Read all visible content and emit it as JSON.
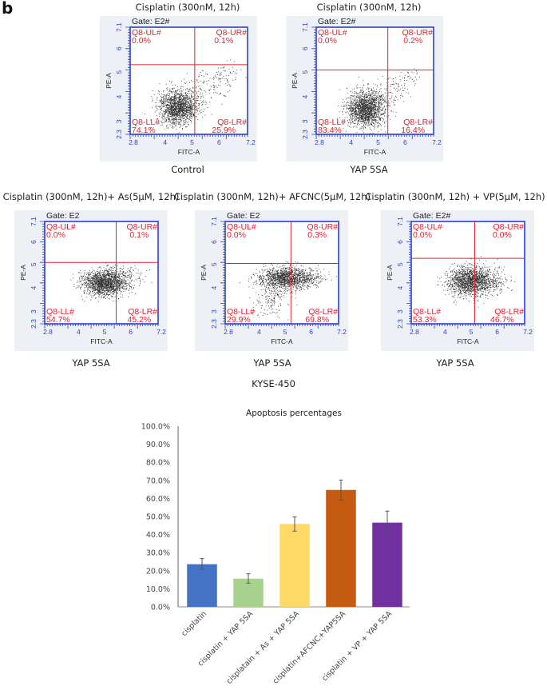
{
  "figure_label": "b",
  "cell_line": "KYSE-450",
  "flow_panels": [
    {
      "title": "Cisplatin (300nM, 12h)",
      "caption": "Control",
      "gate": "Gate: E2#",
      "x_axis_label": "FITC-A",
      "y_axis_label": "PE-A",
      "x_ticks": [
        "2.8",
        "4",
        "5",
        "6",
        "7.2"
      ],
      "y_ticks": [
        "2.3",
        "3",
        "4",
        "5",
        "6",
        "7.1"
      ],
      "quadrants": {
        "UL": {
          "name": "Q8-UL#",
          "value": "0.0%"
        },
        "UR": {
          "name": "Q8-UR#",
          "value": "0.1%"
        },
        "LL": {
          "name": "Q8-LL#",
          "value": "74.1%"
        },
        "LR": {
          "name": "Q8-LR#",
          "value": "25.9%"
        }
      }
    },
    {
      "title": "Cisplatin (300nM, 12h)",
      "caption": "YAP 5SA",
      "gate": "Gate: E2#",
      "x_axis_label": "FITC-A",
      "y_axis_label": "PE-A",
      "x_ticks": [
        "2.8",
        "4",
        "5",
        "6",
        "7.2"
      ],
      "y_ticks": [
        "2.3",
        "3",
        "4",
        "5",
        "6",
        "7.1"
      ],
      "quadrants": {
        "UL": {
          "name": "Q8-UL#",
          "value": "0.0%"
        },
        "UR": {
          "name": "Q8-UR#",
          "value": "0.2%"
        },
        "LL": {
          "name": "Q8-LL#",
          "value": "83.4%"
        },
        "LR": {
          "name": "Q8-LR#",
          "value": "16.4%"
        }
      }
    },
    {
      "title": "Cisplatin (300nM, 12h)+ As(5μM, 12h)",
      "caption": "YAP 5SA",
      "gate": "Gate: E2",
      "x_axis_label": "FITC-A",
      "y_axis_label": "PE-A",
      "x_ticks": [
        "2.8",
        "4",
        "5",
        "6",
        "7.2"
      ],
      "y_ticks": [
        "2.3",
        "3",
        "4",
        "5",
        "6",
        "7.1"
      ],
      "quadrants": {
        "UL": {
          "name": "Q8-UL#",
          "value": "0.0%"
        },
        "UR": {
          "name": "Q8-UR#",
          "value": "0.1%"
        },
        "LL": {
          "name": "Q8-LL#",
          "value": "54.7%"
        },
        "LR": {
          "name": "Q8-LR#",
          "value": "45.2%"
        }
      }
    },
    {
      "title": "Cisplatin (300nM, 12h)+ AFCNC(5μM, 12h)",
      "caption": "YAP 5SA",
      "gate": "Gate: E2",
      "x_axis_label": "FITC-A",
      "y_axis_label": "PE-A",
      "x_ticks": [
        "2.8",
        "4",
        "5",
        "6",
        "7.2"
      ],
      "y_ticks": [
        "2.3",
        "3",
        "4",
        "5",
        "6",
        "7.1"
      ],
      "quadrants": {
        "UL": {
          "name": "Q8-UL#",
          "value": "0.0%"
        },
        "UR": {
          "name": "Q8-UR#",
          "value": "0.3%"
        },
        "LL": {
          "name": "Q8-LL#",
          "value": "29.9%"
        },
        "LR": {
          "name": "Q8-LR#",
          "value": "69.8%"
        }
      }
    },
    {
      "title": "Cisplatin (300nM, 12h) + VP(5μM, 12h)",
      "caption": "YAP 5SA",
      "gate": "Gate: E2#",
      "x_axis_label": "FITC-A",
      "y_axis_label": "PE-A",
      "x_ticks": [
        "2.8",
        "4",
        "5",
        "6",
        "7.2"
      ],
      "y_ticks": [
        "2.3",
        "3",
        "4",
        "5",
        "6",
        "7.1"
      ],
      "quadrants": {
        "UL": {
          "name": "Q8-UL#",
          "value": "0.0%"
        },
        "UR": {
          "name": "Q8-UR#",
          "value": "0.0%"
        },
        "LL": {
          "name": "Q8-LL#",
          "value": "53.3%"
        },
        "LR": {
          "name": "Q8-LR#",
          "value": "46.7%"
        }
      }
    }
  ],
  "colors": {
    "quadrant_line": "#e8202f",
    "axis_blue": "#2a3ed6",
    "panel_bg": "#edf1f5",
    "dot": "#111111"
  },
  "chart_data": {
    "type": "bar",
    "title": "Apoptosis percentages",
    "xlabel": "",
    "ylabel": "",
    "ylim": [
      0,
      100
    ],
    "y_tick_step": 10,
    "y_tick_labels": [
      "0.0%",
      "10.0%",
      "20.0%",
      "30.0%",
      "40.0%",
      "50.0%",
      "60.0%",
      "70.0%",
      "80.0%",
      "90.0%",
      "100.0%"
    ],
    "grid": false,
    "legend": "none",
    "categories": [
      "cisplatin",
      "cisplatin + YAP 5SA",
      "cisplatain + As + YAP 5SA",
      "cisplatin+AFCNC+YAP5SA",
      "cisplatin + VP + YAP 5SA"
    ],
    "values": [
      23.6,
      15.6,
      45.9,
      64.7,
      46.6
    ],
    "error_low": [
      20.8,
      13.1,
      41.9,
      59.0,
      40.3
    ],
    "error_high": [
      26.7,
      18.3,
      49.7,
      70.2,
      53.0
    ],
    "bar_colors": [
      "#4472c4",
      "#a9d18e",
      "#ffd966",
      "#c55a11",
      "#7030a0"
    ]
  }
}
